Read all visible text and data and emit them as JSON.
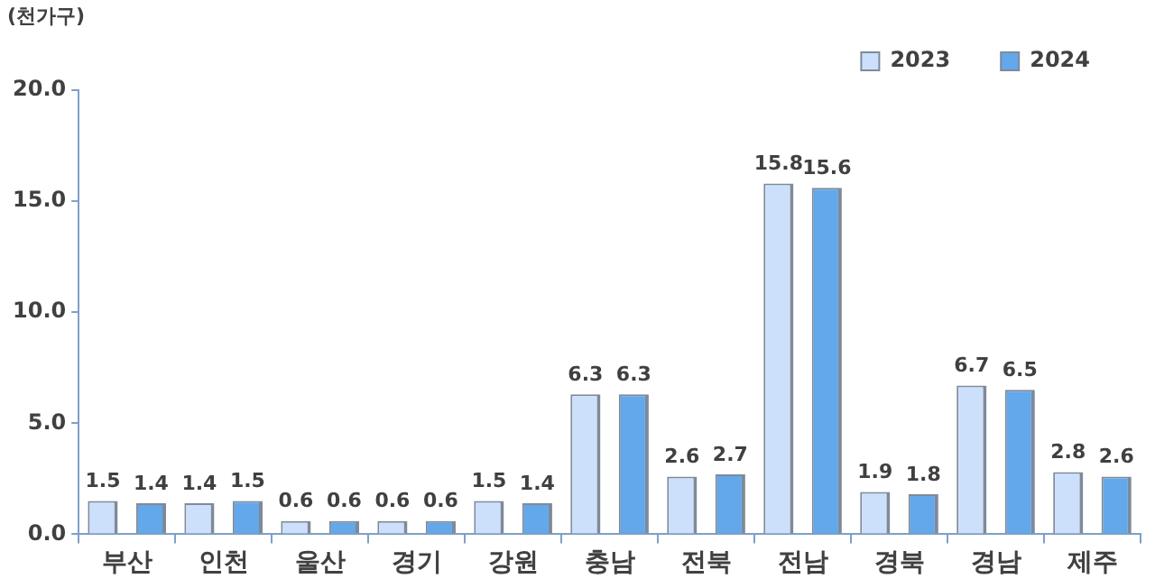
{
  "chart_data": {
    "type": "bar",
    "ylabel": "(천가구)",
    "categories": [
      "부산",
      "인천",
      "울산",
      "경기",
      "강원",
      "충남",
      "전북",
      "전남",
      "경북",
      "경남",
      "제주"
    ],
    "series": [
      {
        "name": "2023",
        "color": "#cce0fc",
        "values": [
          1.5,
          1.4,
          0.6,
          0.6,
          1.5,
          6.3,
          2.6,
          15.8,
          1.9,
          6.7,
          2.8
        ]
      },
      {
        "name": "2024",
        "color": "#62a8ea",
        "values": [
          1.4,
          1.5,
          0.6,
          0.6,
          1.4,
          6.3,
          2.7,
          15.6,
          1.8,
          6.5,
          2.6
        ]
      }
    ],
    "ylim": [
      0,
      20
    ],
    "yticks": [
      {
        "value": 0,
        "label": "0.0"
      },
      {
        "value": 5,
        "label": "5.0"
      },
      {
        "value": 10,
        "label": "10.0"
      },
      {
        "value": 15,
        "label": "15.0"
      },
      {
        "value": 20,
        "label": "20.0"
      }
    ],
    "grid": false,
    "legend": "top right",
    "data_labels": true
  }
}
